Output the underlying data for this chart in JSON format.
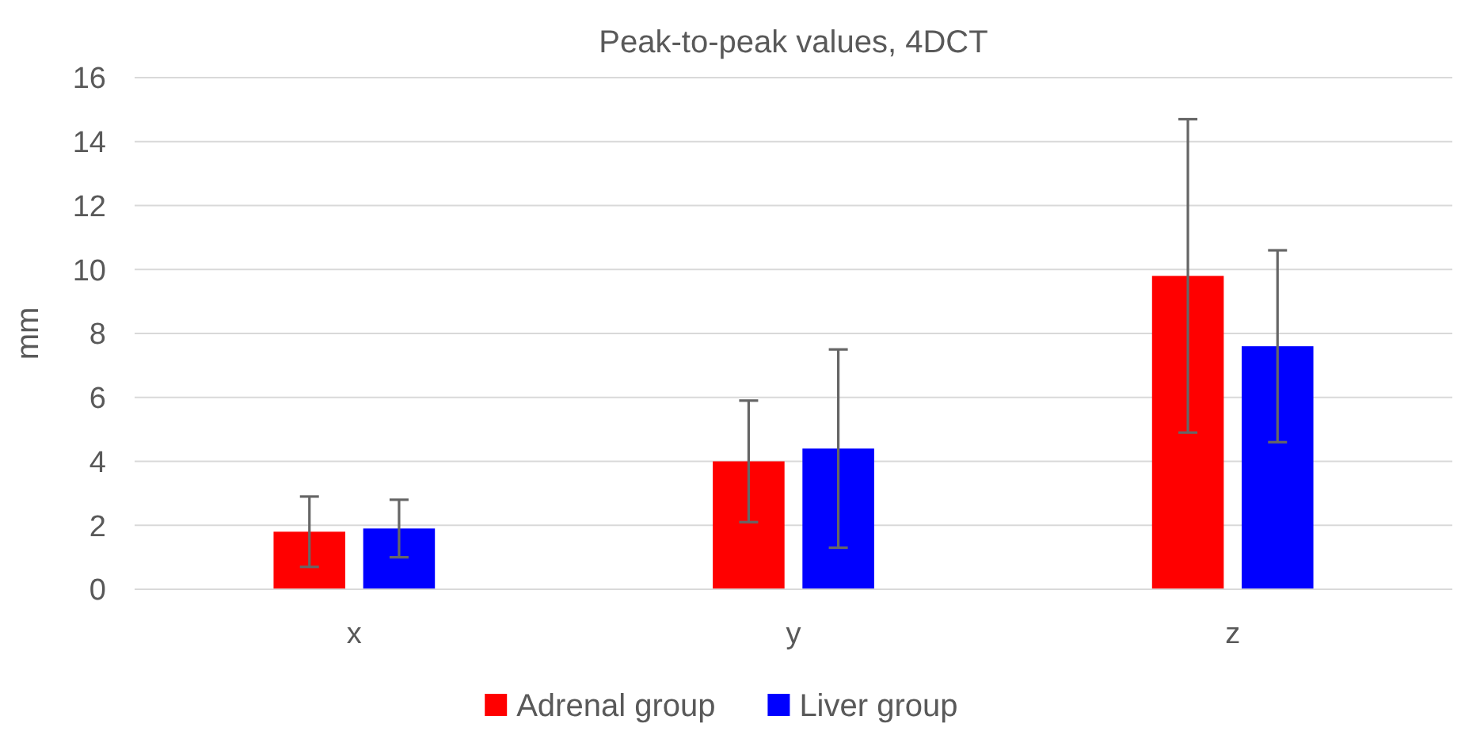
{
  "chart_data": {
    "type": "bar",
    "title": "Peak-to-peak values, 4DCT",
    "ylabel": "mm",
    "categories": [
      "x",
      "y",
      "z"
    ],
    "series": [
      {
        "name": "Adrenal group",
        "color": "#ff0000",
        "values": [
          1.8,
          4.0,
          9.8
        ],
        "errors": [
          1.1,
          1.9,
          4.9
        ]
      },
      {
        "name": "Liver group",
        "color": "#0000ff",
        "values": [
          1.9,
          4.4,
          7.6
        ],
        "errors": [
          0.9,
          3.1,
          3.0
        ]
      }
    ],
    "ylim": [
      0,
      16
    ],
    "yticks": [
      0,
      2,
      4,
      6,
      8,
      10,
      12,
      14,
      16
    ],
    "grid": "y",
    "legend": "bottom"
  }
}
